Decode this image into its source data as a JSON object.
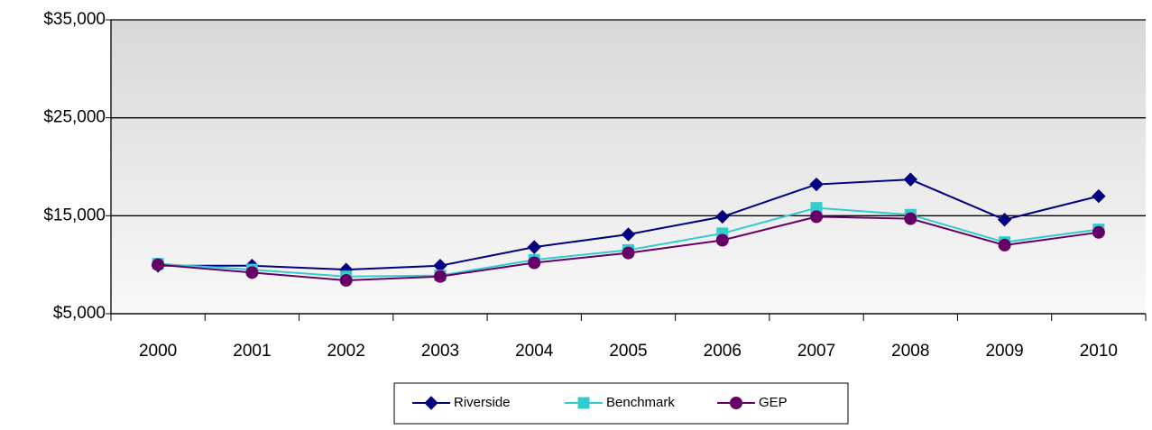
{
  "chart_data": {
    "type": "line",
    "categories": [
      "2000",
      "2001",
      "2002",
      "2003",
      "2004",
      "2005",
      "2006",
      "2007",
      "2008",
      "2009",
      "2010"
    ],
    "series": [
      {
        "name": "Riverside",
        "color": "#000080",
        "marker": "diamond",
        "values": [
          9900,
          9900,
          9500,
          9900,
          11800,
          13100,
          14900,
          18200,
          18700,
          14600,
          17000
        ]
      },
      {
        "name": "Benchmark",
        "color": "#33cccc",
        "marker": "square",
        "values": [
          10100,
          9500,
          8800,
          8900,
          10500,
          11500,
          13200,
          15800,
          15100,
          12300,
          13600
        ]
      },
      {
        "name": "GEP",
        "color": "#660066",
        "marker": "circle",
        "values": [
          10000,
          9200,
          8400,
          8800,
          10200,
          11200,
          12500,
          14900,
          14700,
          12000,
          13300
        ]
      }
    ],
    "ylim": [
      5000,
      35000
    ],
    "yticks": [
      {
        "value": 5000,
        "label": "$5,000"
      },
      {
        "value": 15000,
        "label": "$15,000"
      },
      {
        "value": 25000,
        "label": "$25,000"
      },
      {
        "value": 35000,
        "label": "$35,000"
      }
    ],
    "grid": true,
    "legend": "bottom"
  }
}
